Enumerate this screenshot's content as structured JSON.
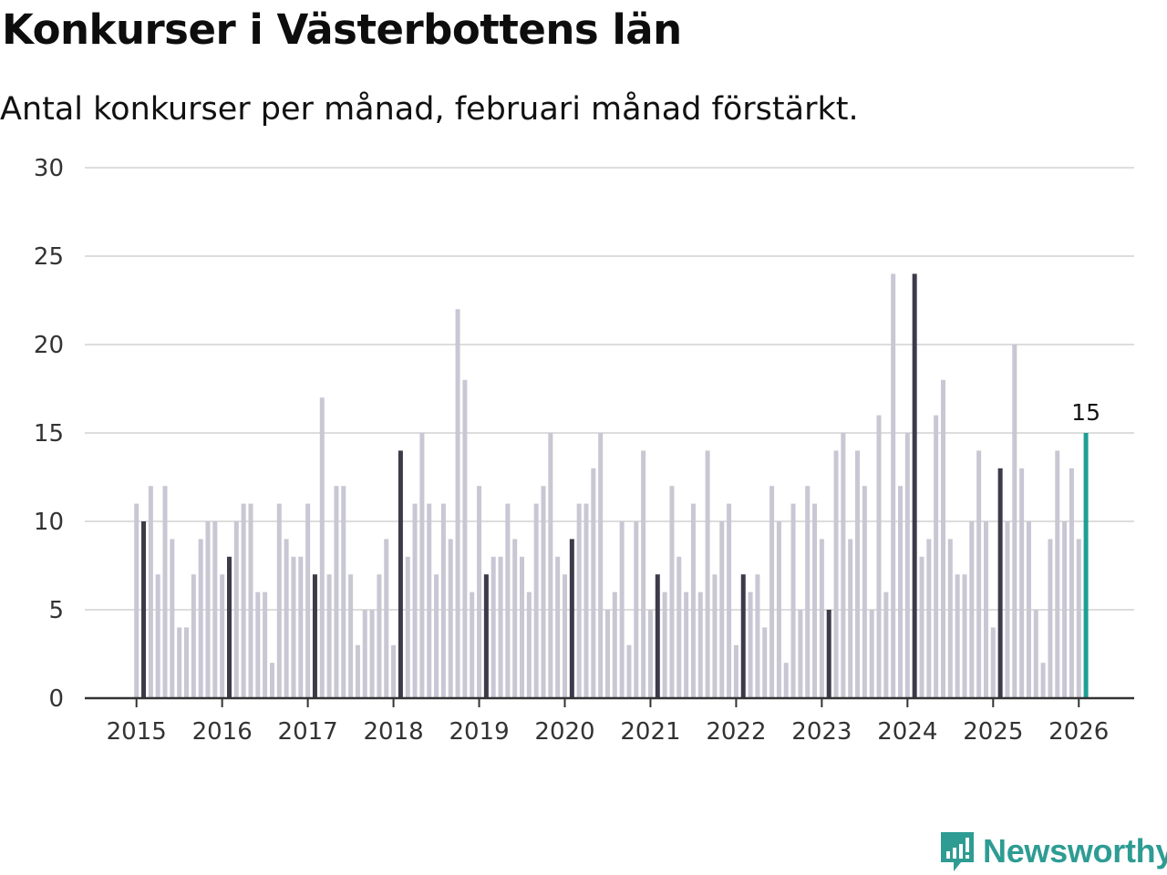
{
  "title": "Konkurser i Västerbottens län",
  "subtitle": "Antal konkurser per månad, februari månad förstärkt.",
  "brand": {
    "name": "Newsworthy",
    "icon": "newsworthy-logo-icon"
  },
  "colors": {
    "regular": "#c8c7d3",
    "february": "#3d3b4a",
    "latest": "#1f9e95",
    "grid": "#dddddd",
    "axis": "#333333",
    "text": "#333333"
  },
  "chart_data": {
    "type": "bar",
    "title": "Konkurser i Västerbottens län",
    "xlabel": "",
    "ylabel": "",
    "ylim": [
      0,
      30
    ],
    "yticks": [
      0,
      5,
      10,
      15,
      20,
      25,
      30
    ],
    "start": {
      "year": 2015,
      "month": 1
    },
    "year_labels": [
      "2015",
      "2016",
      "2017",
      "2018",
      "2019",
      "2020",
      "2021",
      "2022",
      "2023",
      "2024",
      "2025",
      "2026"
    ],
    "highlight": "February values emphasised",
    "latest_label": "15",
    "values": [
      11,
      10,
      12,
      7,
      12,
      9,
      4,
      4,
      7,
      9,
      10,
      10,
      7,
      8,
      10,
      11,
      11,
      6,
      6,
      2,
      11,
      9,
      8,
      8,
      11,
      7,
      17,
      7,
      12,
      12,
      7,
      3,
      5,
      5,
      7,
      9,
      3,
      14,
      8,
      11,
      15,
      11,
      7,
      11,
      9,
      22,
      18,
      6,
      12,
      7,
      8,
      8,
      11,
      9,
      8,
      6,
      11,
      12,
      15,
      8,
      7,
      9,
      11,
      11,
      13,
      15,
      5,
      6,
      10,
      3,
      10,
      14,
      5,
      7,
      6,
      12,
      8,
      6,
      11,
      6,
      14,
      7,
      10,
      11,
      3,
      7,
      6,
      7,
      4,
      12,
      10,
      2,
      11,
      5,
      12,
      11,
      9,
      5,
      14,
      15,
      9,
      14,
      12,
      5,
      16,
      6,
      24,
      12,
      15,
      24,
      8,
      9,
      16,
      18,
      9,
      7,
      7,
      10,
      14,
      10,
      4,
      13,
      10,
      20,
      13,
      10,
      5,
      2,
      9,
      14,
      10,
      13,
      9,
      15
    ]
  }
}
